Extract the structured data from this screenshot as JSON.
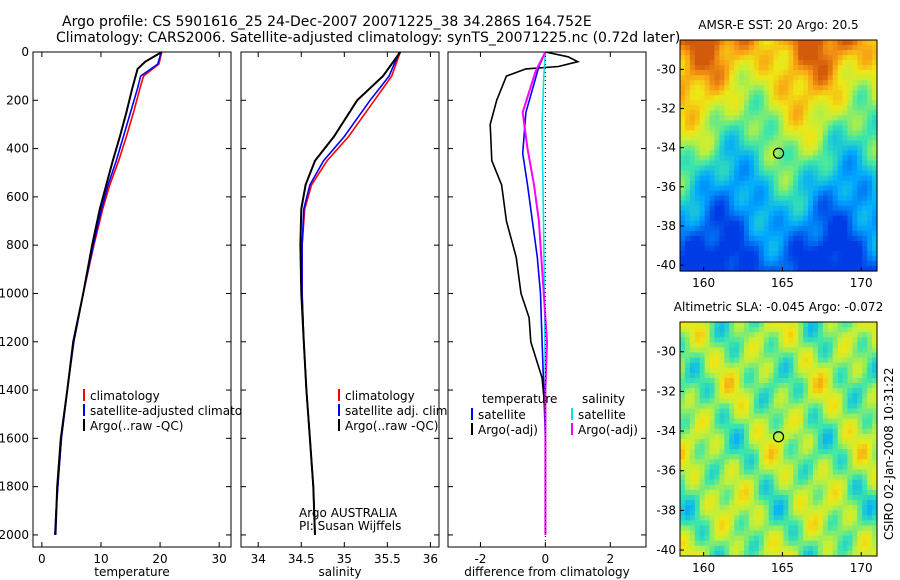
{
  "header": {
    "title_line1": "Argo profile: CS 5901616_25 24-Dec-2007 20071225_38 34.286S 164.752E",
    "title_line2": "Climatology: CARS2006. Satellite-adjusted climatology: synTS_20071225.nc (0.72d later)"
  },
  "side_text": "CSIRO 02-Jan-2008 10:31:22",
  "colors": {
    "climatology": "#ff0000",
    "satellite": "#0000ff",
    "argo": "#000000",
    "salinity_satellite": "#00e5e5",
    "salinity_argo": "#ff00ff"
  },
  "chart_data": [
    {
      "type": "line",
      "id": "temperature",
      "xlabel": "temperature",
      "ylabel": "",
      "xlim": [
        -1.5,
        32
      ],
      "ylim": [
        2050,
        0
      ],
      "xticks": [
        0,
        10,
        20,
        30
      ],
      "yticks": [
        0,
        200,
        400,
        600,
        800,
        1000,
        1200,
        1400,
        1600,
        1800,
        2000
      ],
      "series": [
        {
          "name": "climatology",
          "color": "#ff0000",
          "x": [
            20.3,
            19.8,
            17.2,
            16.6,
            15.5,
            14.3,
            13.0,
            11.5,
            10.3,
            8.8,
            7.0,
            5.4,
            4.3,
            3.3,
            2.7,
            2.4,
            2.2
          ],
          "y": [
            0,
            50,
            100,
            150,
            250,
            350,
            450,
            550,
            650,
            800,
            1000,
            1200,
            1400,
            1600,
            1800,
            1900,
            2000
          ]
        },
        {
          "name": "satellite-adjusted climatology",
          "color": "#0000ff",
          "x": [
            20.2,
            19.6,
            16.7,
            16.2,
            15.0,
            13.8,
            12.6,
            11.2,
            10.1,
            8.7,
            7.0,
            5.4,
            4.3,
            3.3,
            2.7,
            2.4,
            2.2
          ],
          "y": [
            0,
            50,
            100,
            150,
            250,
            350,
            450,
            550,
            650,
            800,
            1000,
            1200,
            1400,
            1600,
            1800,
            1900,
            2000
          ]
        },
        {
          "name": "Argo(..raw -QC)",
          "color": "#000000",
          "x": [
            20.3,
            17.5,
            16.2,
            15.3,
            14.3,
            13.2,
            12.0,
            10.9,
            9.8,
            8.5,
            7.0,
            5.3,
            4.3,
            3.2,
            2.6,
            2.3
          ],
          "y": [
            0,
            40,
            70,
            150,
            250,
            350,
            450,
            550,
            650,
            800,
            1000,
            1200,
            1400,
            1600,
            1800,
            2000
          ]
        }
      ],
      "legend": [
        "climatology",
        "satellite-adjusted climatology",
        "Argo(..raw -QC)"
      ]
    },
    {
      "type": "line",
      "id": "salinity",
      "xlabel": "salinity",
      "ylabel": "",
      "xlim": [
        33.8,
        36.1
      ],
      "ylim": [
        2050,
        0
      ],
      "xticks": [
        34,
        34.5,
        35,
        35.5,
        36
      ],
      "yticks": [
        0,
        200,
        400,
        600,
        800,
        1000,
        1200,
        1400,
        1600,
        1800,
        2000
      ],
      "series": [
        {
          "name": "climatology",
          "color": "#ff0000",
          "x": [
            35.65,
            35.55,
            35.35,
            35.05,
            34.8,
            34.62,
            34.54,
            34.51,
            34.51,
            34.53,
            34.56,
            34.6,
            34.64,
            34.66
          ],
          "y": [
            0,
            100,
            200,
            350,
            450,
            550,
            650,
            800,
            1000,
            1200,
            1400,
            1600,
            1800,
            2000
          ]
        },
        {
          "name": "satellite adj. clim.",
          "color": "#0000ff",
          "x": [
            35.64,
            35.52,
            35.3,
            35.0,
            34.76,
            34.6,
            34.53,
            34.51,
            34.51,
            34.53,
            34.56,
            34.6,
            34.64,
            34.66
          ],
          "y": [
            0,
            100,
            200,
            350,
            450,
            550,
            650,
            800,
            1000,
            1200,
            1400,
            1600,
            1800,
            2000
          ]
        },
        {
          "name": "Argo(..raw -QC)",
          "color": "#000000",
          "x": [
            35.65,
            35.45,
            35.15,
            34.88,
            34.66,
            34.55,
            34.5,
            34.49,
            34.5,
            34.53,
            34.56,
            34.6,
            34.64,
            34.66
          ],
          "y": [
            0,
            100,
            200,
            350,
            450,
            550,
            650,
            800,
            1000,
            1200,
            1400,
            1600,
            1800,
            2000
          ]
        }
      ],
      "legend": [
        "climatology",
        "satellite adj. clim.",
        "Argo(..raw -QC)"
      ],
      "annotation": [
        "Argo AUSTRALIA",
        "PI: Susan Wijffels"
      ]
    },
    {
      "type": "line",
      "id": "difference",
      "xlabel": "difference from climatology",
      "ylabel": "",
      "xlim": [
        -3,
        3.1
      ],
      "ylim": [
        2050,
        0
      ],
      "xticks": [
        -2,
        0,
        2
      ],
      "yticks": [
        0,
        200,
        400,
        600,
        800,
        1000,
        1200,
        1400,
        1600,
        1800,
        2000
      ],
      "series": [
        {
          "name": "temperature satellite",
          "color": "#0000ff",
          "x": [
            0,
            -0.2,
            -0.6,
            -0.7,
            -0.55,
            -0.4,
            -0.25,
            -0.15,
            -0.1,
            -0.05,
            0,
            0
          ],
          "y": [
            0,
            60,
            250,
            420,
            550,
            700,
            850,
            1000,
            1200,
            1400,
            1600,
            2000
          ]
        },
        {
          "name": "temperature Argo(-adj)",
          "color": "#000000",
          "x": [
            0,
            0.7,
            1.0,
            0.4,
            -0.6,
            -1.2,
            -1.5,
            -1.7,
            -1.65,
            -1.35,
            -1.2,
            -0.9,
            -0.75,
            -0.5,
            -0.45,
            -0.1,
            0,
            0
          ],
          "y": [
            0,
            20,
            40,
            60,
            70,
            100,
            200,
            300,
            450,
            550,
            700,
            850,
            1000,
            1100,
            1200,
            1350,
            1500,
            2000
          ]
        },
        {
          "name": "salinity satellite",
          "color": "#00e5e5",
          "x": [
            0,
            -0.05,
            -0.1,
            -0.08,
            -0.05,
            -0.02,
            0,
            0
          ],
          "y": [
            0,
            100,
            300,
            500,
            800,
            1100,
            1400,
            2000
          ]
        },
        {
          "name": "salinity Argo(-adj)",
          "color": "#ff00ff",
          "x": [
            0,
            -0.3,
            -0.7,
            -0.55,
            -0.35,
            -0.2,
            -0.1,
            0,
            0.05,
            0,
            0
          ],
          "y": [
            0,
            80,
            250,
            400,
            550,
            700,
            900,
            1100,
            1200,
            1400,
            2000
          ]
        }
      ],
      "legend_groups": [
        {
          "heading": "temperature",
          "items": [
            "satellite",
            "Argo(-adj)"
          ]
        },
        {
          "heading": "salinity",
          "items": [
            "satellite",
            "Argo(-adj)"
          ]
        }
      ]
    },
    {
      "type": "heatmap",
      "id": "sst_map",
      "title": "AMSR-E SST: 20 Argo: 20.5",
      "xlim": [
        158.5,
        171
      ],
      "ylim": [
        -40.3,
        -28.5
      ],
      "xticks": [
        160,
        165,
        170
      ],
      "yticks": [
        -30,
        -32,
        -34,
        -36,
        -38,
        -40
      ],
      "marker": {
        "lon": 164.752,
        "lat": -34.286
      }
    },
    {
      "type": "heatmap",
      "id": "sla_map",
      "title": "Altimetric SLA: -0.045 Argo: -0.072",
      "xlim": [
        158.5,
        171
      ],
      "ylim": [
        -40.3,
        -28.5
      ],
      "xticks": [
        160,
        165,
        170
      ],
      "yticks": [
        -30,
        -32,
        -34,
        -36,
        -38,
        -40
      ],
      "marker": {
        "lon": 164.752,
        "lat": -34.286
      }
    }
  ]
}
